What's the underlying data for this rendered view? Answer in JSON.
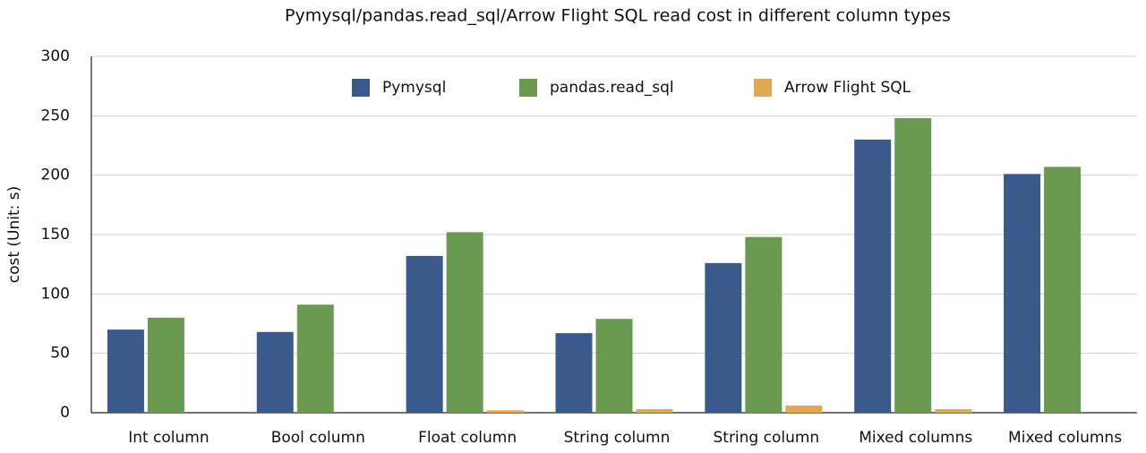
{
  "chart_data": {
    "type": "bar",
    "title": "Pymysql/pandas.read_sql/Arrow Flight SQL read cost in different column types",
    "y_label": "cost (Unit: s)",
    "categories": [
      "Int column",
      "Bool column",
      "Float column",
      "String column",
      "String column",
      "Mixed columns",
      "Mixed columns"
    ],
    "series": [
      {
        "name": "Pymysql",
        "color": "#3b5a8c",
        "values": [
          70,
          68,
          132,
          67,
          126,
          230,
          201
        ]
      },
      {
        "name": "pandas.read_sql",
        "color": "#6a9a50",
        "values": [
          80,
          91,
          152,
          79,
          148,
          248,
          207
        ]
      },
      {
        "name": "Arrow Flight SQL",
        "color": "#e0a850",
        "values": [
          null,
          null,
          2,
          3,
          6,
          3,
          null
        ]
      }
    ],
    "ylim": [
      0,
      300
    ],
    "yticks": [
      0,
      50,
      100,
      150,
      200,
      250,
      300
    ],
    "grid": true,
    "legend": "top"
  }
}
